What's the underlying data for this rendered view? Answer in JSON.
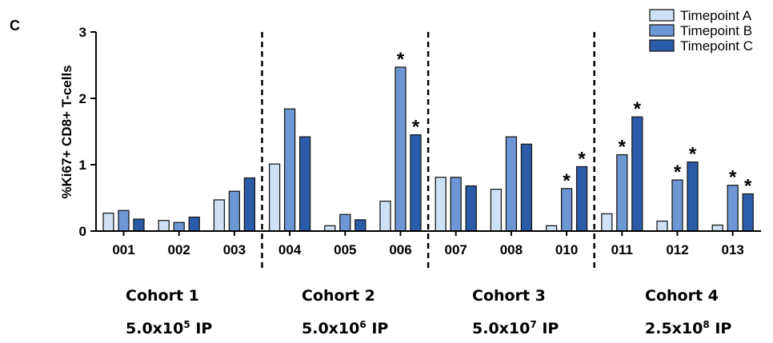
{
  "panel_label": "C",
  "colors": {
    "Timepoint A": "#cfe1f5",
    "Timepoint B": "#6d97d4",
    "Timepoint C": "#2a5caa",
    "edge": "#1b1b1b"
  },
  "cohorts": [
    {
      "name": "Cohort 1",
      "dose_mantissa": "5.0x10",
      "dose_exp": "5",
      "dose_unit": "IP"
    },
    {
      "name": "Cohort 2",
      "dose_mantissa": "5.0x10",
      "dose_exp": "6",
      "dose_unit": "IP"
    },
    {
      "name": "Cohort 3",
      "dose_mantissa": "5.0x10",
      "dose_exp": "7",
      "dose_unit": "IP"
    },
    {
      "name": "Cohort 4",
      "dose_mantissa": "2.5x10",
      "dose_exp": "8",
      "dose_unit": "IP"
    }
  ],
  "chart_data": {
    "type": "bar",
    "ylabel": "%Ki67+ CD8+ T-cells",
    "ylim": [
      0,
      3
    ],
    "yticks": [
      0,
      1,
      2,
      3
    ],
    "categories": [
      "001",
      "002",
      "003",
      "004",
      "005",
      "006",
      "007",
      "008",
      "010",
      "011",
      "012",
      "013"
    ],
    "series": [
      {
        "name": "Timepoint A",
        "values": [
          0.27,
          0.16,
          0.47,
          1.01,
          0.08,
          0.45,
          0.81,
          0.63,
          0.08,
          0.26,
          0.15,
          0.09
        ]
      },
      {
        "name": "Timepoint B",
        "values": [
          0.31,
          0.13,
          0.6,
          1.84,
          0.25,
          2.47,
          0.81,
          1.42,
          0.64,
          1.15,
          0.77,
          0.69
        ]
      },
      {
        "name": "Timepoint C",
        "values": [
          0.18,
          0.21,
          0.8,
          1.42,
          0.17,
          1.45,
          0.68,
          1.31,
          0.97,
          1.72,
          1.04,
          0.56
        ]
      }
    ],
    "significance_marker": "*",
    "significant": [
      {
        "category": "006",
        "series": "Timepoint B"
      },
      {
        "category": "006",
        "series": "Timepoint C"
      },
      {
        "category": "010",
        "series": "Timepoint B"
      },
      {
        "category": "010",
        "series": "Timepoint C"
      },
      {
        "category": "011",
        "series": "Timepoint B"
      },
      {
        "category": "011",
        "series": "Timepoint C"
      },
      {
        "category": "012",
        "series": "Timepoint B"
      },
      {
        "category": "012",
        "series": "Timepoint C"
      },
      {
        "category": "013",
        "series": "Timepoint B"
      },
      {
        "category": "013",
        "series": "Timepoint C"
      }
    ],
    "group_separators_after": [
      "003",
      "006",
      "010"
    ],
    "legend": {
      "position": "top-right",
      "entries": [
        "Timepoint A",
        "Timepoint B",
        "Timepoint C"
      ]
    },
    "grid": false
  }
}
